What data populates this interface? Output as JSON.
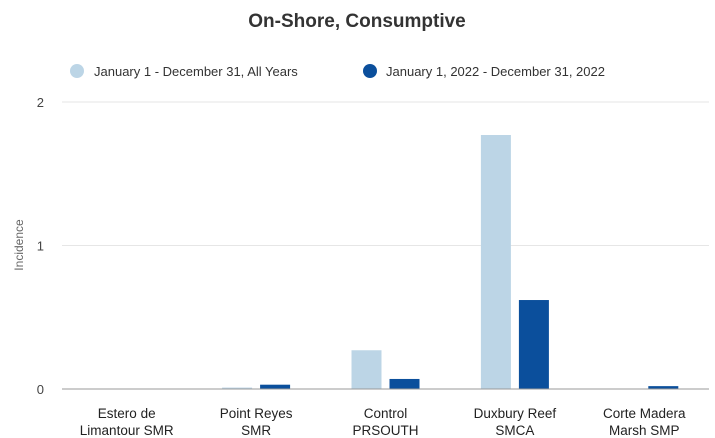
{
  "chart_data": {
    "type": "bar",
    "title": "On-Shore, Consumptive",
    "ylabel": "Incidence",
    "xlabel": "",
    "ylim": [
      0,
      2
    ],
    "yticks": [
      "0",
      "1",
      "2"
    ],
    "grid": true,
    "legend_position": "top",
    "categories": [
      [
        "Estero de",
        "Limantour SMR"
      ],
      [
        "Point Reyes",
        "SMR"
      ],
      [
        "Control",
        "PRSOUTH"
      ],
      [
        "Duxbury Reef",
        "SMCA"
      ],
      [
        "Corte Madera",
        "Marsh SMP"
      ]
    ],
    "series": [
      {
        "name": "January 1 - December 31, All Years",
        "color": "#bcd5e6",
        "values": [
          0,
          0.01,
          0.27,
          1.77,
          0
        ]
      },
      {
        "name": "January 1, 2022 - December 31, 2022",
        "color": "#0b4f9c",
        "values": [
          0,
          0.03,
          0.07,
          0.62,
          0.02
        ]
      }
    ]
  }
}
